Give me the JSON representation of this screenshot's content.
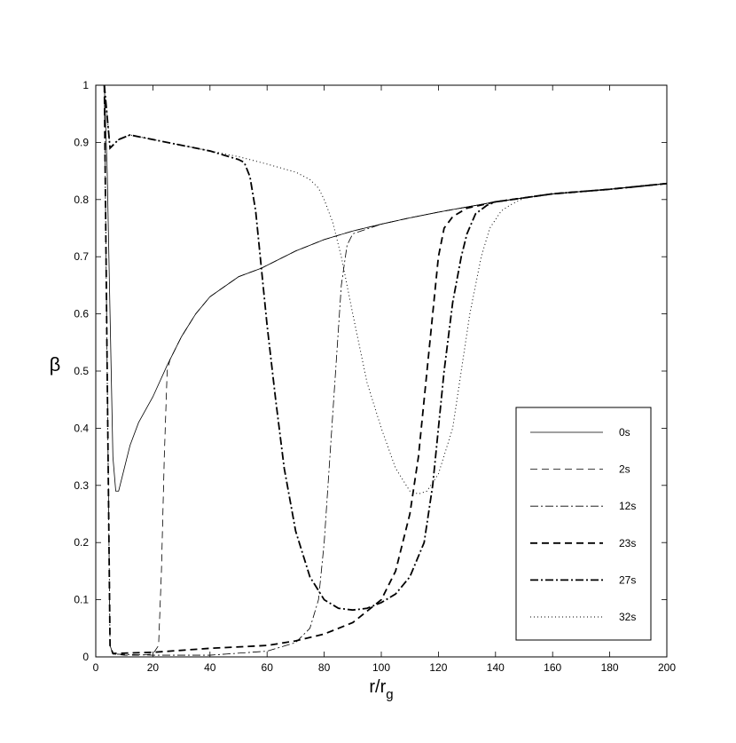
{
  "chart_data": {
    "type": "line",
    "xlabel": {
      "text": "r/r",
      "subscript": "g"
    },
    "ylabel": "β",
    "xlim": [
      0,
      200
    ],
    "ylim": [
      0,
      1
    ],
    "xticks": [
      0,
      20,
      40,
      60,
      80,
      100,
      120,
      140,
      160,
      180,
      200
    ],
    "yticks": [
      0,
      0.1,
      0.2,
      0.3,
      0.4,
      0.5,
      0.6,
      0.7,
      0.8,
      0.9,
      1
    ],
    "legend": "lower right",
    "series": [
      {
        "name": "0s",
        "color": "#000000",
        "linestyle": "-",
        "linewidth": 0.8,
        "x": [
          3,
          4,
          5,
          6,
          7,
          8,
          10,
          12,
          15,
          20,
          25,
          30,
          35,
          40,
          50,
          58,
          70,
          80,
          90,
          100,
          110,
          120,
          130,
          140,
          150,
          160,
          180,
          200
        ],
        "values": [
          1.0,
          0.85,
          0.6,
          0.35,
          0.29,
          0.29,
          0.33,
          0.37,
          0.41,
          0.455,
          0.51,
          0.56,
          0.6,
          0.63,
          0.665,
          0.68,
          0.71,
          0.73,
          0.745,
          0.757,
          0.768,
          0.778,
          0.787,
          0.796,
          0.803,
          0.81,
          0.818,
          0.828
        ]
      },
      {
        "name": "2s",
        "color": "#000000",
        "linestyle": "--",
        "linewidth": 0.8,
        "x": [
          3,
          4,
          5,
          6,
          10,
          15,
          20,
          22,
          23,
          24,
          25,
          26,
          30,
          35,
          40,
          50,
          58,
          70,
          80,
          90,
          100,
          110,
          120,
          130,
          140,
          150,
          160,
          180,
          200
        ],
        "values": [
          1.0,
          0.5,
          0.02,
          0.005,
          0.003,
          0.003,
          0.005,
          0.02,
          0.15,
          0.35,
          0.5,
          0.52,
          0.56,
          0.6,
          0.63,
          0.665,
          0.68,
          0.71,
          0.73,
          0.745,
          0.757,
          0.768,
          0.778,
          0.787,
          0.796,
          0.803,
          0.81,
          0.818,
          0.828
        ]
      },
      {
        "name": "12s",
        "color": "#000000",
        "linestyle": "-.",
        "linewidth": 0.8,
        "x": [
          3,
          4,
          5,
          6,
          20,
          40,
          60,
          70,
          75,
          78,
          80,
          82,
          84,
          86,
          88,
          90,
          100,
          110,
          120,
          130,
          140,
          150,
          160,
          180,
          200
        ],
        "values": [
          1.0,
          0.5,
          0.02,
          0.005,
          0.003,
          0.003,
          0.01,
          0.025,
          0.05,
          0.1,
          0.2,
          0.35,
          0.5,
          0.65,
          0.72,
          0.74,
          0.757,
          0.768,
          0.778,
          0.787,
          0.796,
          0.803,
          0.81,
          0.818,
          0.828
        ]
      },
      {
        "name": "23s",
        "color": "#000000",
        "linestyle": "--",
        "linewidth": 1.8,
        "x": [
          3,
          4,
          5,
          6,
          20,
          40,
          60,
          70,
          80,
          90,
          100,
          105,
          110,
          113,
          116,
          118,
          120,
          122,
          125,
          130,
          140,
          150,
          160,
          180,
          200
        ],
        "values": [
          1.0,
          0.5,
          0.02,
          0.006,
          0.008,
          0.015,
          0.02,
          0.028,
          0.04,
          0.06,
          0.1,
          0.15,
          0.25,
          0.35,
          0.5,
          0.6,
          0.7,
          0.75,
          0.77,
          0.785,
          0.796,
          0.803,
          0.81,
          0.818,
          0.828
        ]
      },
      {
        "name": "27s",
        "color": "#000000",
        "linestyle": "-.",
        "linewidth": 1.8,
        "x": [
          3,
          5,
          8,
          12,
          20,
          30,
          40,
          50,
          52,
          54,
          56,
          58,
          60,
          63,
          66,
          70,
          75,
          80,
          85,
          90,
          95,
          100,
          105,
          110,
          115,
          118,
          120,
          122,
          125,
          128,
          130,
          133,
          137,
          140,
          150,
          160,
          180,
          200
        ],
        "values": [
          1.0,
          0.89,
          0.905,
          0.913,
          0.905,
          0.895,
          0.885,
          0.87,
          0.865,
          0.84,
          0.78,
          0.68,
          0.58,
          0.45,
          0.33,
          0.22,
          0.14,
          0.1,
          0.085,
          0.082,
          0.085,
          0.095,
          0.11,
          0.14,
          0.2,
          0.3,
          0.4,
          0.5,
          0.62,
          0.7,
          0.74,
          0.775,
          0.79,
          0.796,
          0.803,
          0.81,
          0.818,
          0.828
        ]
      },
      {
        "name": "32s",
        "color": "#000000",
        "linestyle": ":",
        "linewidth": 1.0,
        "x": [
          3,
          5,
          8,
          12,
          20,
          30,
          40,
          50,
          60,
          70,
          75,
          78,
          80,
          83,
          86,
          90,
          95,
          100,
          105,
          110,
          113,
          116,
          120,
          125,
          128,
          131,
          135,
          138,
          142,
          145,
          150,
          160,
          180,
          200
        ],
        "values": [
          1.0,
          0.89,
          0.905,
          0.913,
          0.905,
          0.895,
          0.885,
          0.875,
          0.862,
          0.848,
          0.835,
          0.82,
          0.8,
          0.76,
          0.7,
          0.6,
          0.48,
          0.4,
          0.33,
          0.29,
          0.285,
          0.29,
          0.32,
          0.4,
          0.5,
          0.6,
          0.7,
          0.75,
          0.78,
          0.79,
          0.803,
          0.81,
          0.818,
          0.828
        ]
      }
    ]
  }
}
